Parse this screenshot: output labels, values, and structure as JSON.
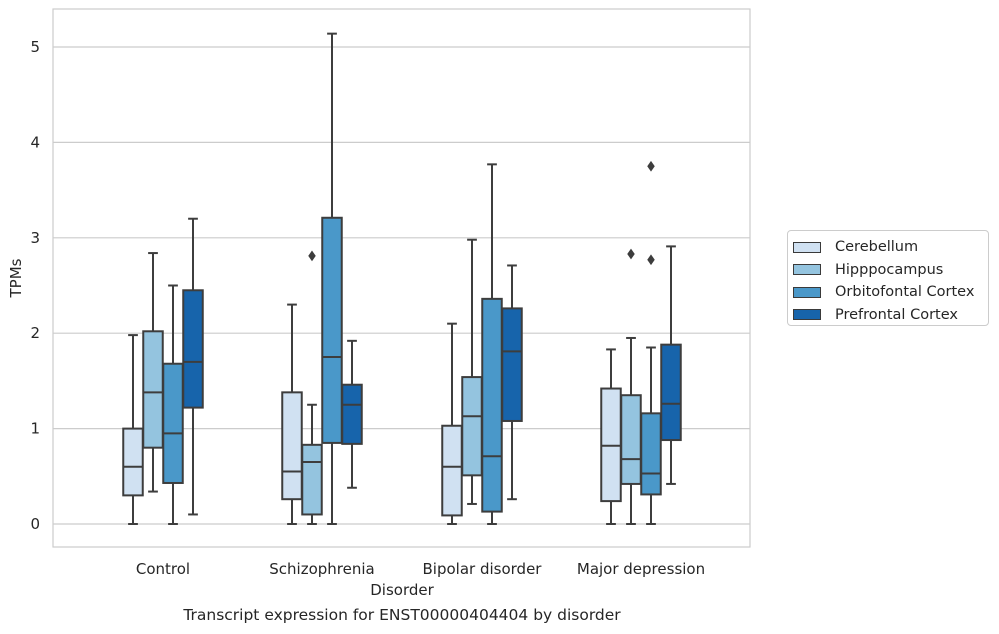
{
  "chart_data": {
    "type": "box",
    "title": "",
    "caption": "Transcript expression for ENST00000404404 by disorder",
    "xlabel": "Disorder",
    "ylabel": "TPMs",
    "ylim": [
      -0.25,
      5.4
    ],
    "yticks": [
      "0",
      "1",
      "2",
      "3",
      "4",
      "5"
    ],
    "grid": "horizontal",
    "legend_position": "right",
    "categories": [
      "Control",
      "Schizophrenia",
      "Bipolar disorder",
      "Major depression"
    ],
    "series": [
      {
        "name": "Cerebellum",
        "color": "#d0e1f2",
        "boxes": [
          {
            "whisker_low": 0,
            "q1": 0.3,
            "median": 0.6,
            "q3": 1.0,
            "whisker_high": 1.98,
            "outliers": []
          },
          {
            "whisker_low": 0,
            "q1": 0.26,
            "median": 0.55,
            "q3": 1.38,
            "whisker_high": 2.3,
            "outliers": []
          },
          {
            "whisker_low": 0,
            "q1": 0.09,
            "median": 0.6,
            "q3": 1.03,
            "whisker_high": 2.1,
            "outliers": []
          },
          {
            "whisker_low": 0,
            "q1": 0.24,
            "median": 0.82,
            "q3": 1.42,
            "whisker_high": 1.83,
            "outliers": []
          }
        ]
      },
      {
        "name": "Hipppocampus",
        "color": "#94c4df",
        "boxes": [
          {
            "whisker_low": 0.34,
            "q1": 0.8,
            "median": 1.38,
            "q3": 2.02,
            "whisker_high": 2.84,
            "outliers": []
          },
          {
            "whisker_low": 0,
            "q1": 0.1,
            "median": 0.65,
            "q3": 0.83,
            "whisker_high": 1.25,
            "outliers": [
              2.81
            ]
          },
          {
            "whisker_low": 0.21,
            "q1": 0.51,
            "median": 1.13,
            "q3": 1.54,
            "whisker_high": 2.98,
            "outliers": []
          },
          {
            "whisker_low": 0,
            "q1": 0.42,
            "median": 0.68,
            "q3": 1.35,
            "whisker_high": 1.95,
            "outliers": [
              2.83
            ]
          }
        ]
      },
      {
        "name": "Orbitofontal Cortex",
        "color": "#4a98c9",
        "boxes": [
          {
            "whisker_low": 0,
            "q1": 0.43,
            "median": 0.95,
            "q3": 1.68,
            "whisker_high": 2.5,
            "outliers": []
          },
          {
            "whisker_low": 0,
            "q1": 0.85,
            "median": 1.75,
            "q3": 3.21,
            "whisker_high": 5.14,
            "outliers": []
          },
          {
            "whisker_low": 0,
            "q1": 0.13,
            "median": 0.71,
            "q3": 2.36,
            "whisker_high": 3.77,
            "outliers": []
          },
          {
            "whisker_low": 0,
            "q1": 0.31,
            "median": 0.53,
            "q3": 1.16,
            "whisker_high": 1.85,
            "outliers": [
              2.77,
              3.75
            ]
          }
        ]
      },
      {
        "name": "Prefrontal Cortex",
        "color": "#1764ab",
        "boxes": [
          {
            "whisker_low": 0.1,
            "q1": 1.22,
            "median": 1.7,
            "q3": 2.45,
            "whisker_high": 3.2,
            "outliers": []
          },
          {
            "whisker_low": 0.38,
            "q1": 0.84,
            "median": 1.25,
            "q3": 1.46,
            "whisker_high": 1.92,
            "outliers": []
          },
          {
            "whisker_low": 0.26,
            "q1": 1.08,
            "median": 1.81,
            "q3": 2.26,
            "whisker_high": 2.71,
            "outliers": []
          },
          {
            "whisker_low": 0.42,
            "q1": 0.88,
            "median": 1.26,
            "q3": 1.88,
            "whisker_high": 2.91,
            "outliers": []
          }
        ]
      }
    ]
  }
}
